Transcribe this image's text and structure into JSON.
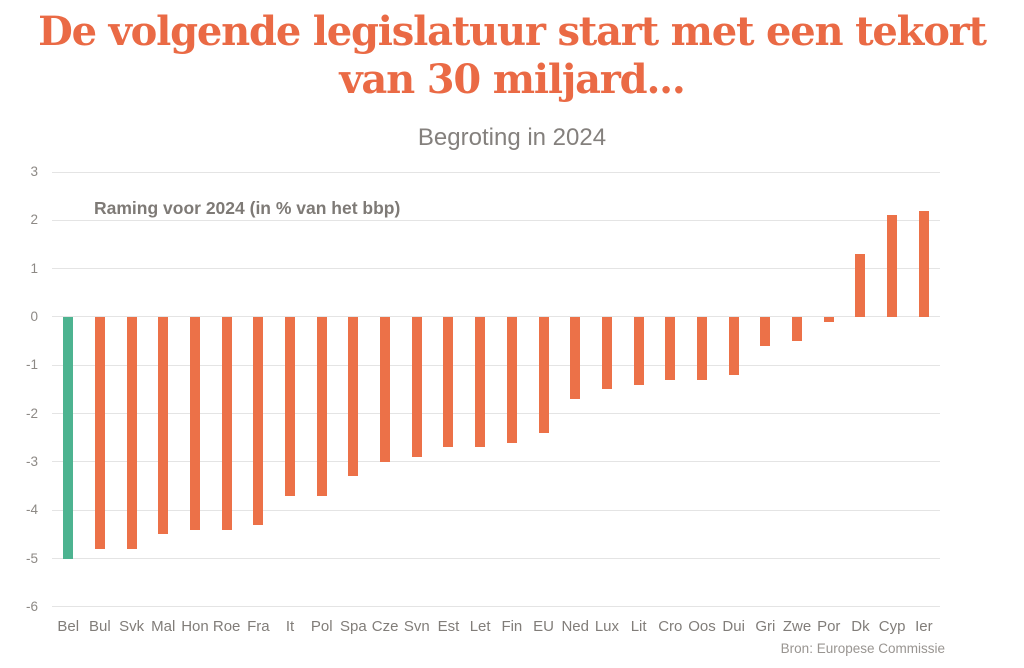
{
  "page": {
    "title_line1": "De volgende legislatuur start met een tekort",
    "title_line2": "van 30 miljard...",
    "title_color": "#EA6A45"
  },
  "chart_data": {
    "type": "bar",
    "title": "Begroting in 2024",
    "annotation": "Raming voor 2024 (in % van het bbp)",
    "source": "Bron: Europese Commissie",
    "categories": [
      "Bel",
      "Bul",
      "Svk",
      "Mal",
      "Hon",
      "Roe",
      "Fra",
      "It",
      "Pol",
      "Spa",
      "Cze",
      "Svn",
      "Est",
      "Let",
      "Fin",
      "EU",
      "Ned",
      "Lux",
      "Lit",
      "Cro",
      "Oos",
      "Dui",
      "Gri",
      "Zwe",
      "Por",
      "Dk",
      "Cyp",
      "Ier"
    ],
    "values": [
      -5.0,
      -4.8,
      -4.8,
      -4.5,
      -4.4,
      -4.4,
      -4.3,
      -3.7,
      -3.7,
      -3.3,
      -3.0,
      -2.9,
      -2.7,
      -2.7,
      -2.6,
      -2.4,
      -1.7,
      -1.5,
      -1.4,
      -1.3,
      -1.3,
      -1.2,
      -0.6,
      -0.5,
      -0.1,
      1.3,
      2.1,
      2.2
    ],
    "ylim": [
      -6,
      3
    ],
    "yticks": [
      3,
      2,
      1,
      0,
      -1,
      -2,
      -3,
      -4,
      -5,
      -6
    ],
    "grid": true,
    "legend": false,
    "bar_color": "#EC7148",
    "highlight_color": "#4DB390",
    "highlight_category": "Bel",
    "gridline_color": "#e4e4e4"
  }
}
